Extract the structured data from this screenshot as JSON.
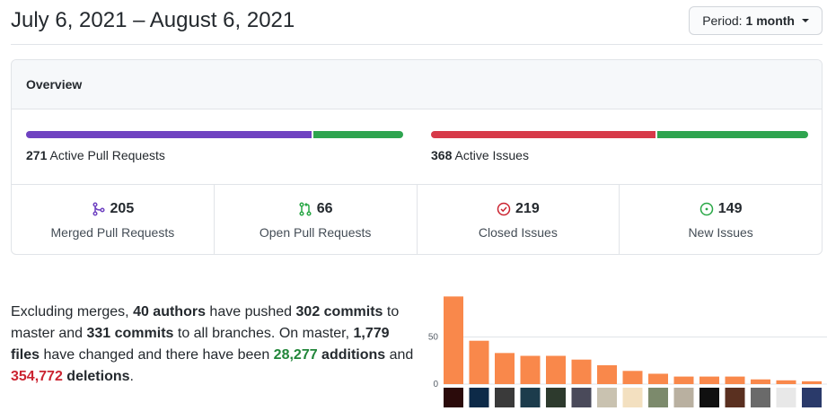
{
  "header": {
    "title": "July 6, 2021 – August 6, 2021",
    "period_label": "Period:",
    "period_value": "1 month"
  },
  "overview": {
    "title": "Overview",
    "pull_requests": {
      "count": "271",
      "label": "Active Pull Requests",
      "merged_fraction": 0.756
    },
    "issues": {
      "count": "368",
      "label": "Active Issues",
      "closed_fraction": 0.595
    },
    "stats": [
      {
        "value": "205",
        "label": "Merged Pull Requests",
        "icon": "git-merge-icon",
        "color": "#6f42c1"
      },
      {
        "value": "66",
        "label": "Open Pull Requests",
        "icon": "git-pull-request-icon",
        "color": "#28a745"
      },
      {
        "value": "219",
        "label": "Closed Issues",
        "icon": "issue-closed-icon",
        "color": "#cb2431"
      },
      {
        "value": "149",
        "label": "New Issues",
        "icon": "issue-opened-icon",
        "color": "#28a745"
      }
    ],
    "colors": {
      "merged": "#6f42c1",
      "open": "#2ea44f",
      "closed": "#d73a49",
      "new": "#2ea44f"
    }
  },
  "summary": {
    "p1": "Excluding merges, ",
    "authors": "40 authors",
    "p2": " have pushed ",
    "commits_master": "302 commits",
    "p3": " to master and ",
    "commits_all": "331 commits",
    "p4": " to all branches. On master, ",
    "files": "1,779 files",
    "p5": " have changed and there have been ",
    "additions_num": "28,277",
    "additions_word": " additions",
    "p6": " and ",
    "deletions_num": "354,772",
    "deletions_word": " deletions",
    "p7": "."
  },
  "chart_data": {
    "type": "bar",
    "title": "",
    "xlabel": "",
    "ylabel": "",
    "ylim": [
      0,
      100
    ],
    "yticks": [
      "0",
      "50"
    ],
    "values": [
      93,
      46,
      33,
      30,
      30,
      26,
      20,
      14,
      11,
      8,
      8,
      8,
      5,
      4,
      3
    ],
    "color": "#f9884b"
  }
}
